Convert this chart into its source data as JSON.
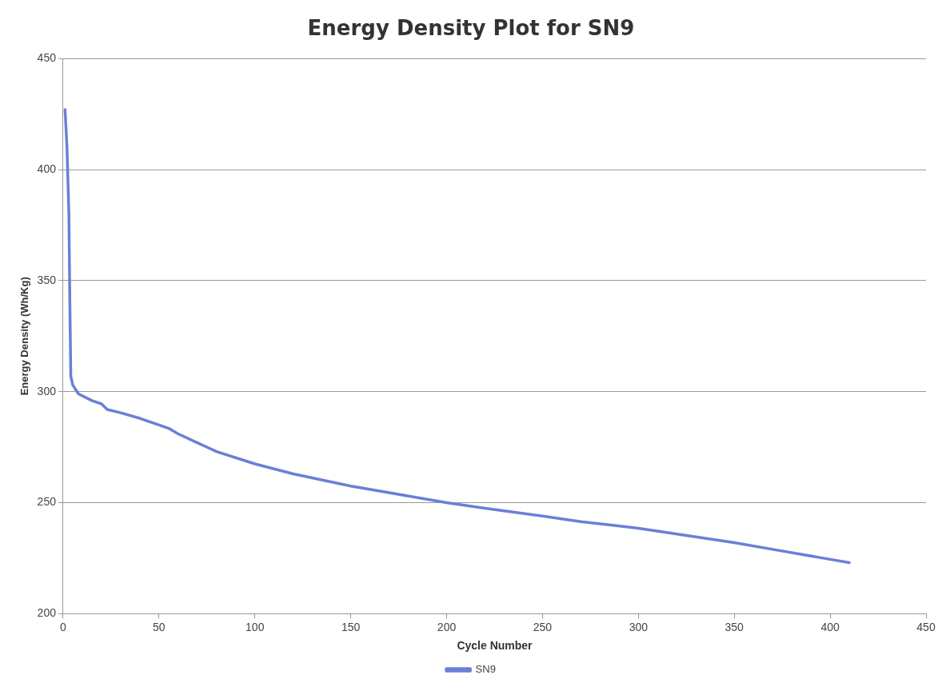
{
  "chart_data": {
    "type": "line",
    "title": "Energy Density Plot for SN9",
    "xlabel": "Cycle Number",
    "ylabel": "Energy Density (Wh/Kg)",
    "x": [
      1,
      2,
      3,
      3.5,
      4,
      5,
      8,
      15,
      20,
      23,
      30,
      40,
      50,
      55,
      60,
      70,
      80,
      100,
      120,
      150,
      170,
      200,
      220,
      250,
      270,
      300,
      350,
      370,
      400,
      410
    ],
    "series": [
      {
        "name": "SN9",
        "color": "#6b7fd7",
        "values": [
          427,
          410,
          380,
          340,
          307,
          303,
          299,
          296,
          294.5,
          292,
          290.5,
          288,
          285,
          283.5,
          281,
          277,
          273,
          267.5,
          263,
          257.5,
          254.5,
          250,
          247.5,
          244,
          241.5,
          238.5,
          232,
          229,
          224.5,
          223
        ]
      }
    ],
    "xlim": [
      0,
      450
    ],
    "xticks": [
      0,
      50,
      100,
      150,
      200,
      250,
      300,
      350,
      400,
      450
    ],
    "ylim": [
      200,
      450
    ],
    "yticks": [
      200,
      250,
      300,
      350,
      400,
      450
    ],
    "grid": "y",
    "legend": "bottom",
    "marker": "none",
    "line_style": "solid"
  }
}
